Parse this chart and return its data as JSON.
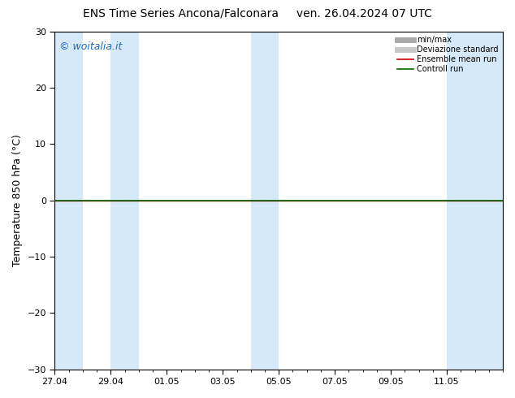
{
  "title_left": "ENS Time Series Ancona/Falconara",
  "title_right": "ven. 26.04.2024 07 UTC",
  "ylabel": "Temperature 850 hPa (°C)",
  "watermark": "© woitalia.it",
  "watermark_color": "#1a6bc4",
  "ylim": [
    -30,
    30
  ],
  "yticks": [
    -30,
    -20,
    -10,
    0,
    10,
    20,
    30
  ],
  "x_tick_labels": [
    "27.04",
    "29.04",
    "01.05",
    "03.05",
    "05.05",
    "07.05",
    "09.05",
    "11.05"
  ],
  "x_tick_positions": [
    0,
    2,
    4,
    6,
    8,
    10,
    12,
    14
  ],
  "shaded_bands": [
    [
      0,
      1
    ],
    [
      2,
      3
    ],
    [
      7,
      8
    ],
    [
      14,
      16
    ]
  ],
  "shaded_color": "#d6e9f8",
  "zero_line_color": "#000000",
  "ensemble_mean_color": "#cc0000",
  "control_run_color": "#006600",
  "bg_color": "#ffffff",
  "plot_bg_color": "#ffffff",
  "legend_items": [
    {
      "label": "min/max",
      "color": "#aaaaaa",
      "lw": 5
    },
    {
      "label": "Deviazione standard",
      "color": "#c8c8c8",
      "lw": 5
    },
    {
      "label": "Ensemble mean run",
      "color": "#cc0000",
      "lw": 1.2
    },
    {
      "label": "Controll run",
      "color": "#006600",
      "lw": 1.2
    }
  ],
  "total_days": 16,
  "title_fontsize": 10,
  "ylabel_fontsize": 9,
  "tick_fontsize": 8
}
